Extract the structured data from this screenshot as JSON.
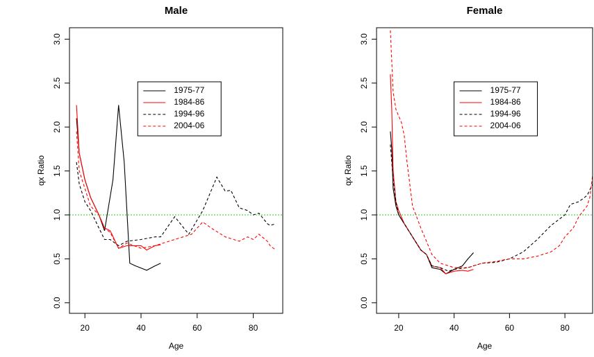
{
  "chart_data": [
    {
      "type": "line",
      "title": "Male",
      "xlabel": "Age",
      "ylabel": "qx Ratio",
      "xlim": [
        14.5,
        90.5
      ],
      "ylim": [
        -0.12,
        3.13
      ],
      "xticks": [
        20,
        40,
        60,
        80
      ],
      "yticks": [
        {
          "value": 0,
          "label": "0.0"
        },
        0.5,
        {
          "value": 1,
          "label": "1.0"
        },
        1.5,
        {
          "value": 2,
          "label": "2.0"
        },
        2.5,
        {
          "value": 3,
          "label": "3.0"
        }
      ],
      "reference_line": {
        "value": 1,
        "color": "#33cc33"
      },
      "legend": "top-right",
      "series": [
        {
          "name": "1975-77",
          "color": "#000000",
          "dashed": false,
          "x": [
            17,
            18,
            20,
            22,
            25,
            27,
            30,
            32,
            34,
            36,
            38,
            42,
            45,
            47
          ],
          "values": [
            2.1,
            1.7,
            1.4,
            1.2,
            1.0,
            0.82,
            1.4,
            2.25,
            1.6,
            0.45,
            0.42,
            0.37,
            0.42,
            0.45
          ]
        },
        {
          "name": "1984-86",
          "color": "#ff0000",
          "dashed": false,
          "x": [
            17,
            18,
            20,
            22,
            25,
            27,
            29,
            32,
            35,
            40,
            42,
            45,
            47
          ],
          "values": [
            2.25,
            1.7,
            1.4,
            1.2,
            1.0,
            0.85,
            0.82,
            0.62,
            0.65,
            0.65,
            0.6,
            0.65,
            0.66
          ]
        },
        {
          "name": "1994-96",
          "color": "#000000",
          "dashed": true,
          "x": [
            17,
            18,
            20,
            22,
            25,
            27,
            29,
            32,
            35,
            40,
            45,
            47,
            52,
            57,
            62,
            67,
            70,
            72,
            75,
            78,
            80,
            82,
            85,
            86,
            88
          ],
          "values": [
            1.6,
            1.35,
            1.15,
            1.05,
            0.85,
            0.72,
            0.72,
            0.65,
            0.7,
            0.72,
            0.75,
            0.75,
            0.98,
            0.78,
            1.05,
            1.43,
            1.27,
            1.28,
            1.08,
            1.05,
            1.0,
            1.02,
            0.9,
            0.88,
            0.9
          ]
        },
        {
          "name": "2004-06",
          "color": "#ff0000",
          "dashed": true,
          "x": [
            17,
            18,
            20,
            22,
            25,
            27,
            29,
            32,
            35,
            40,
            45,
            50,
            55,
            58,
            62,
            65,
            70,
            75,
            78,
            80,
            82,
            85,
            86,
            88
          ],
          "values": [
            1.95,
            1.5,
            1.3,
            1.1,
            1.0,
            0.85,
            0.8,
            0.62,
            0.68,
            0.62,
            0.65,
            0.7,
            0.75,
            0.78,
            0.92,
            0.85,
            0.75,
            0.7,
            0.75,
            0.72,
            0.78,
            0.7,
            0.65,
            0.6
          ]
        }
      ]
    },
    {
      "type": "line",
      "title": "Female",
      "xlabel": "Age",
      "ylabel": "qx Ratio",
      "xlim": [
        12,
        90
      ],
      "ylim": [
        -0.12,
        3.13
      ],
      "xticks": [
        20,
        40,
        60,
        80
      ],
      "yticks": [
        {
          "value": 0,
          "label": "0.0"
        },
        0.5,
        {
          "value": 1,
          "label": "1.0"
        },
        1.5,
        {
          "value": 2,
          "label": "2.0"
        },
        2.5,
        {
          "value": 3,
          "label": "3.0"
        }
      ],
      "reference_line": {
        "value": 1,
        "color": "#33cc33"
      },
      "legend": "top-right",
      "series": [
        {
          "name": "1975-77",
          "color": "#000000",
          "dashed": false,
          "x": [
            17,
            17.5,
            18,
            19,
            20,
            22,
            25,
            28,
            30,
            32,
            35,
            37,
            40,
            43,
            45,
            47
          ],
          "values": [
            1.95,
            1.75,
            1.3,
            1.1,
            1.0,
            0.9,
            0.75,
            0.6,
            0.55,
            0.4,
            0.38,
            0.33,
            0.38,
            0.42,
            0.5,
            0.57
          ]
        },
        {
          "name": "1984-86",
          "color": "#ff0000",
          "dashed": false,
          "x": [
            17,
            17.5,
            18,
            19,
            20,
            22,
            25,
            28,
            30,
            32,
            35,
            37,
            40,
            43,
            45,
            47
          ],
          "values": [
            2.6,
            2.2,
            1.5,
            1.15,
            1.05,
            0.9,
            0.75,
            0.6,
            0.55,
            0.42,
            0.4,
            0.33,
            0.36,
            0.37,
            0.36,
            0.38
          ]
        },
        {
          "name": "1994-96",
          "color": "#000000",
          "dashed": true,
          "x": [
            17,
            18,
            19,
            20,
            22,
            25,
            28,
            30,
            32,
            35,
            38,
            40,
            45,
            50,
            55,
            60,
            65,
            70,
            75,
            80,
            82,
            85,
            88,
            90
          ],
          "values": [
            1.8,
            1.4,
            1.15,
            1.0,
            0.9,
            0.75,
            0.6,
            0.55,
            0.42,
            0.4,
            0.36,
            0.38,
            0.4,
            0.45,
            0.46,
            0.5,
            0.58,
            0.72,
            0.88,
            1.0,
            1.12,
            1.15,
            1.22,
            1.35
          ]
        },
        {
          "name": "2004-06",
          "color": "#ff0000",
          "dashed": true,
          "x": [
            17,
            18,
            19,
            21,
            22,
            23,
            25,
            28,
            30,
            32,
            35,
            38,
            40,
            45,
            50,
            55,
            60,
            65,
            70,
            75,
            78,
            80,
            83,
            85,
            88,
            89,
            90
          ],
          "values": [
            3.1,
            2.4,
            2.2,
            2.05,
            1.9,
            1.6,
            1.1,
            0.85,
            0.7,
            0.55,
            0.45,
            0.42,
            0.4,
            0.4,
            0.45,
            0.47,
            0.5,
            0.5,
            0.53,
            0.58,
            0.65,
            0.75,
            0.85,
            0.98,
            1.1,
            1.2,
            1.45
          ]
        }
      ]
    }
  ]
}
